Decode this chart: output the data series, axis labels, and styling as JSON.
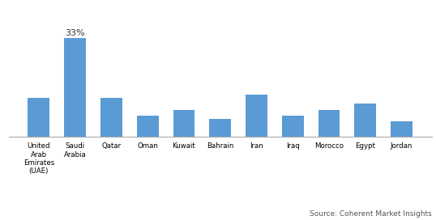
{
  "categories": [
    "United\nArab\nEmirates\n(UAE)",
    "Saudi\nArabia",
    "Qatar",
    "Oman",
    "Kuwait",
    "Bahrain",
    "Iran",
    "Iraq",
    "Morocco",
    "Egypt",
    "Jordan"
  ],
  "values": [
    13,
    33,
    13,
    7,
    9,
    6,
    14,
    7,
    9,
    11,
    5
  ],
  "bar_color": "#5B9BD5",
  "annotation_label": "33%",
  "annotation_index": 1,
  "source_text": "Source: Coherent Market Insights",
  "ylim": [
    0,
    40
  ],
  "bar_width": 0.6,
  "background_color": "#ffffff",
  "fig_width": 5.38,
  "fig_height": 2.72,
  "dpi": 100
}
